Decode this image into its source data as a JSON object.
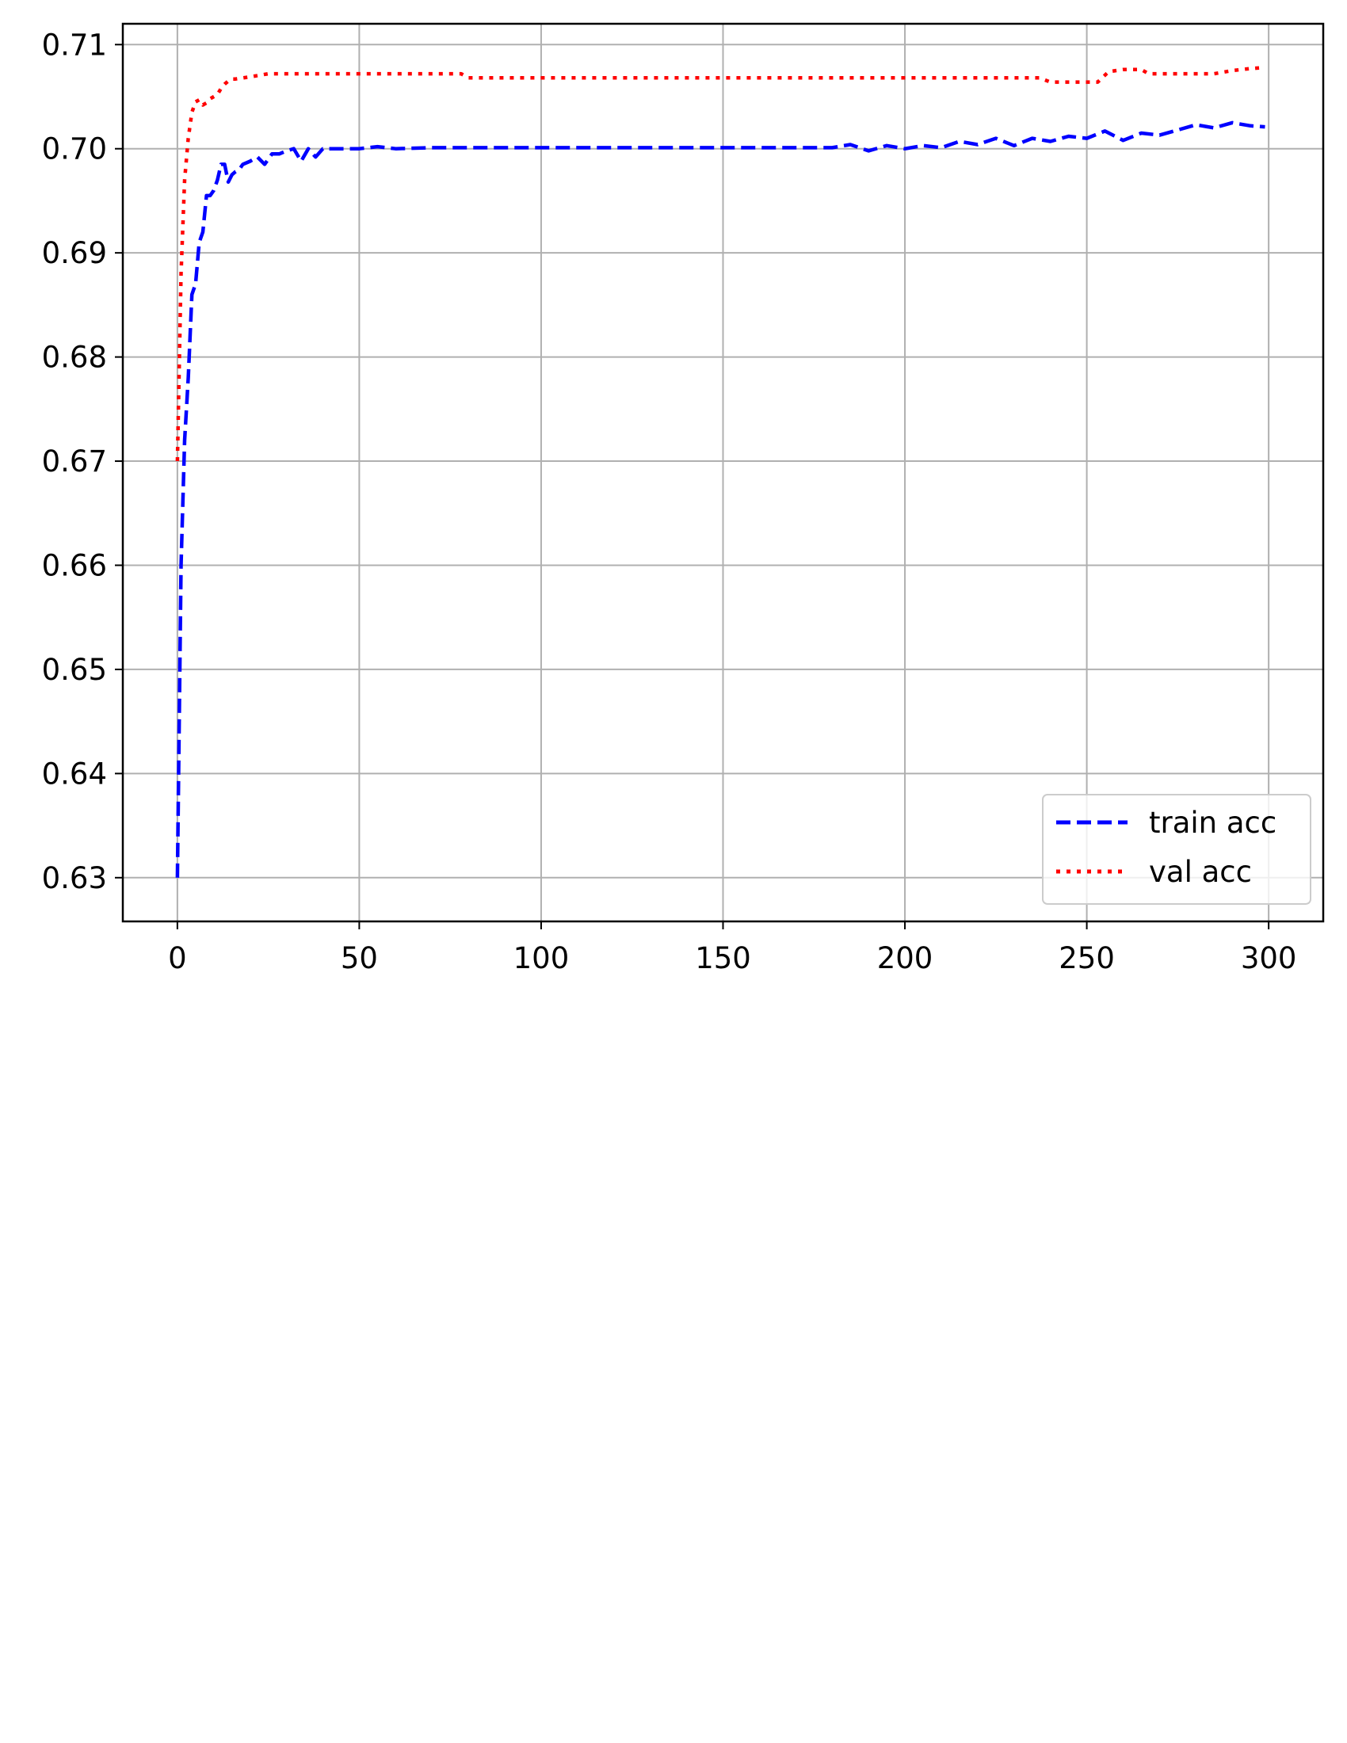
{
  "chart_data": {
    "type": "line",
    "title": "",
    "xlabel": "",
    "ylabel": "",
    "xlim": [
      -15,
      315
    ],
    "ylim": [
      0.6258,
      0.712
    ],
    "x_ticks": [
      0,
      50,
      100,
      150,
      200,
      250,
      300
    ],
    "x_tick_labels": [
      "0",
      "50",
      "100",
      "150",
      "200",
      "250",
      "300"
    ],
    "y_ticks": [
      0.63,
      0.64,
      0.65,
      0.66,
      0.67,
      0.68,
      0.69,
      0.7,
      0.71
    ],
    "y_tick_labels": [
      "0.63",
      "0.64",
      "0.65",
      "0.66",
      "0.67",
      "0.68",
      "0.69",
      "0.70",
      "0.71"
    ],
    "grid": true,
    "legend_position": "lower-right",
    "series": [
      {
        "name": "train acc",
        "color": "#0000ff",
        "style": "dashed",
        "x": [
          0,
          1,
          2,
          3,
          4,
          5,
          6,
          7,
          8,
          9,
          10,
          11,
          12,
          13,
          14,
          15,
          16,
          17,
          18,
          20,
          22,
          24,
          26,
          28,
          30,
          32,
          34,
          36,
          38,
          40,
          45,
          50,
          55,
          60,
          70,
          80,
          90,
          100,
          110,
          120,
          130,
          140,
          150,
          160,
          170,
          180,
          185,
          190,
          195,
          200,
          205,
          210,
          215,
          220,
          225,
          230,
          235,
          240,
          245,
          250,
          255,
          260,
          265,
          270,
          275,
          280,
          285,
          290,
          295,
          299
        ],
        "y": [
          0.63,
          0.66,
          0.672,
          0.678,
          0.686,
          0.687,
          0.691,
          0.692,
          0.6955,
          0.6955,
          0.696,
          0.697,
          0.6985,
          0.6985,
          0.6968,
          0.6975,
          0.6978,
          0.698,
          0.6985,
          0.6988,
          0.6992,
          0.6985,
          0.6995,
          0.6995,
          0.6998,
          0.7,
          0.6988,
          0.7,
          0.6992,
          0.7,
          0.7,
          0.7,
          0.7002,
          0.7,
          0.7001,
          0.7001,
          0.7001,
          0.7001,
          0.7001,
          0.7001,
          0.7001,
          0.7001,
          0.7001,
          0.7001,
          0.7001,
          0.7001,
          0.7004,
          0.6998,
          0.7003,
          0.7,
          0.7003,
          0.7001,
          0.7007,
          0.7004,
          0.701,
          0.7003,
          0.701,
          0.7007,
          0.7012,
          0.701,
          0.7017,
          0.7008,
          0.7015,
          0.7013,
          0.7018,
          0.7023,
          0.702,
          0.7025,
          0.7022,
          0.7021
        ]
      },
      {
        "name": "val acc",
        "color": "#ff0000",
        "style": "dotted",
        "x": [
          0,
          1,
          2,
          3,
          4,
          5,
          6,
          7,
          8,
          9,
          10,
          11,
          12,
          13,
          14,
          15,
          16,
          20,
          25,
          40,
          60,
          78,
          80,
          100,
          150,
          200,
          237,
          240,
          253,
          256,
          260,
          265,
          267,
          270,
          280,
          285,
          290,
          295,
          299
        ],
        "y": [
          0.67,
          0.688,
          0.697,
          0.701,
          0.7035,
          0.7045,
          0.7047,
          0.7042,
          0.7044,
          0.7048,
          0.705,
          0.7052,
          0.7058,
          0.7062,
          0.7065,
          0.7067,
          0.7067,
          0.7069,
          0.7072,
          0.7072,
          0.7072,
          0.7072,
          0.7068,
          0.7068,
          0.7068,
          0.7068,
          0.7068,
          0.7064,
          0.7064,
          0.7074,
          0.7076,
          0.7076,
          0.7072,
          0.7072,
          0.7072,
          0.7072,
          0.7075,
          0.7077,
          0.7078
        ]
      }
    ]
  }
}
